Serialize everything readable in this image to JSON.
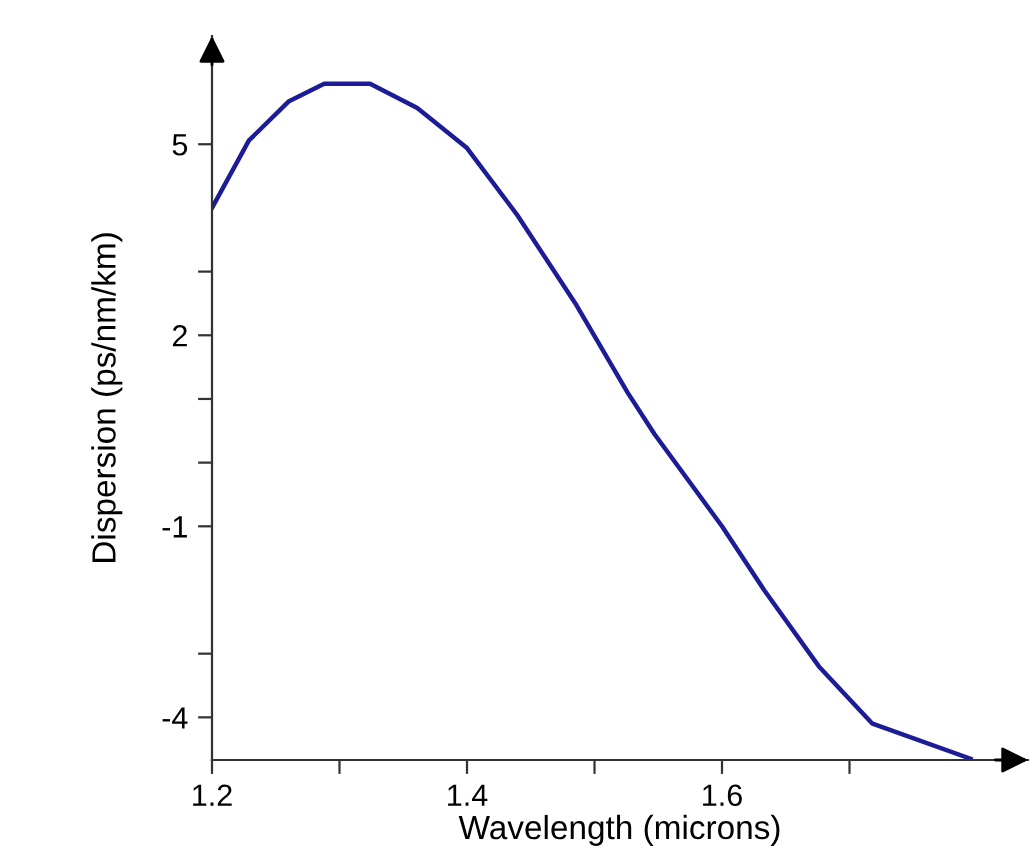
{
  "chart_data": {
    "type": "line",
    "xlabel": "Wavelength (microns)",
    "ylabel": "Dispersion (ps/nm/km)",
    "x": [
      1.2,
      1.229,
      1.26,
      1.288,
      1.324,
      1.361,
      1.4,
      1.439,
      1.485,
      1.526,
      1.547,
      1.6,
      1.633,
      1.676,
      1.718,
      1.795
    ],
    "series": [
      {
        "color": "#1c1c96",
        "values": [
          4.0,
          5.06,
          5.67,
          5.95,
          5.95,
          5.57,
          4.94,
          3.9,
          2.5,
          1.1,
          0.45,
          -1.0,
          -2.0,
          -3.2,
          -4.1,
          -4.65
        ]
      }
    ],
    "xlim": [
      1.2,
      1.84
    ],
    "ylim": [
      -4.67,
      6.7
    ],
    "xticks": [
      1.2,
      {
        "value": 1.3,
        "label": null
      },
      1.4,
      {
        "value": 1.5,
        "label": null
      },
      1.6,
      {
        "value": 1.7,
        "label": null
      }
    ],
    "yticks": [
      -4,
      {
        "value": -3,
        "label": null
      },
      -1,
      {
        "value": 0,
        "label": null
      },
      {
        "value": 1,
        "label": null
      },
      2,
      {
        "value": 3,
        "label": null
      },
      5
    ],
    "grid": false,
    "legend": false,
    "marker": "none",
    "line_style": "solid"
  }
}
